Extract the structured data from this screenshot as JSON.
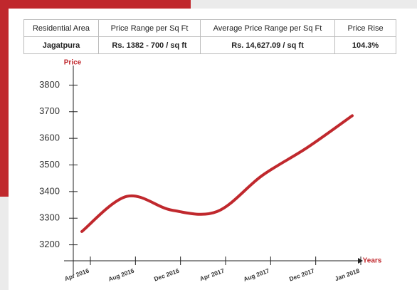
{
  "table": {
    "header": [
      "Residential Area",
      "Price Range per Sq Ft",
      "Average Price Range per Sq Ft",
      "Price Rise"
    ],
    "rows": [
      [
        "Jagatpura",
        "Rs. 1382 - 700 / sq ft",
        "Rs. 14,627.09 / sq ft",
        "104.3%"
      ]
    ]
  },
  "chart_data": {
    "type": "line",
    "y_label": "Price",
    "x_label": "Years",
    "categories": [
      "Apr 2016",
      "Aug 2016",
      "Dec 2016",
      "Apr 2017",
      "Aug 2017",
      "Dec 2017",
      "Jan 2018"
    ],
    "values": [
      3250,
      3382,
      3330,
      3325,
      3460,
      3565,
      3685
    ],
    "color": "#c0282d",
    "ylim": [
      3140,
      3860
    ],
    "yticks": [
      3200,
      3300,
      3400,
      3500,
      3600,
      3700,
      3800
    ]
  }
}
